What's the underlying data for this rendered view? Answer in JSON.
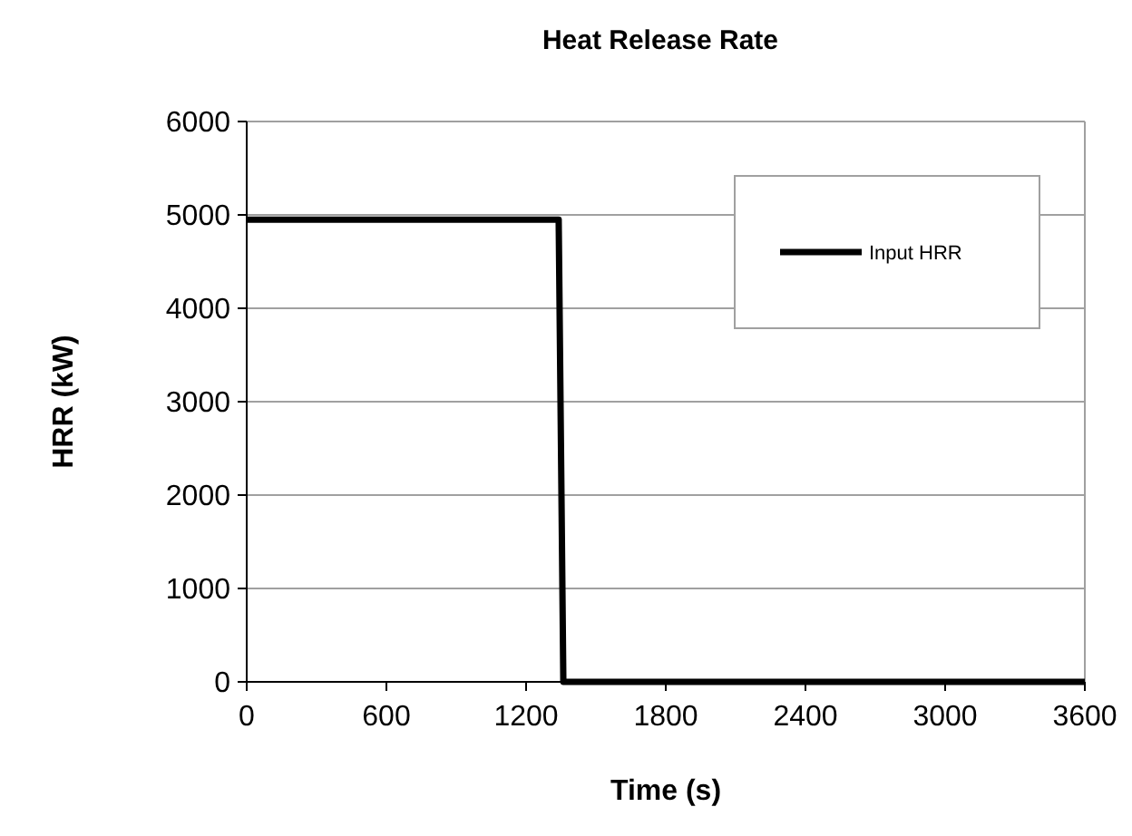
{
  "chart_data": {
    "type": "line",
    "title": "Heat Release Rate",
    "xlabel": "Time (s)",
    "ylabel": "HRR (kW)",
    "series": [
      {
        "name": "Input HRR",
        "color": "#000000",
        "x": [
          0,
          1340,
          1360,
          3600
        ],
        "values": [
          4950,
          4950,
          0,
          0
        ]
      }
    ],
    "xlim": [
      0,
      3600
    ],
    "xticks": [
      0,
      600,
      1200,
      1800,
      2400,
      3000,
      3600
    ],
    "ylim": [
      0,
      6000
    ],
    "yticks": [
      0,
      1000,
      2000,
      3000,
      4000,
      5000,
      6000
    ],
    "grid": "y",
    "legend": "top right",
    "marker": "none",
    "line_style": "solid"
  }
}
